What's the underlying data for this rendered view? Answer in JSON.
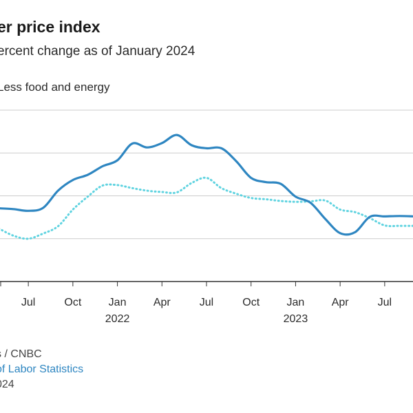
{
  "chart_data": {
    "type": "line",
    "title": "er price index",
    "subtitle": "ercent change as of January 2024",
    "series": [
      {
        "name": "Less food and energy",
        "color": "#2e86c1",
        "style": "solid",
        "x": [
          "2021-05",
          "2021-06",
          "2021-07",
          "2021-08",
          "2021-09",
          "2021-10",
          "2021-11",
          "2021-12",
          "2022-01",
          "2022-02",
          "2022-03",
          "2022-04",
          "2022-05",
          "2022-06",
          "2022-07",
          "2022-08",
          "2022-09",
          "2022-10",
          "2022-11",
          "2022-12",
          "2023-01",
          "2023-02",
          "2023-03",
          "2023-04",
          "2023-05",
          "2023-06",
          "2023-07",
          "2023-08",
          "2023-09"
        ],
        "values": [
          4.71,
          4.69,
          4.65,
          4.72,
          5.12,
          5.37,
          5.49,
          5.69,
          5.83,
          6.22,
          6.13,
          6.23,
          6.42,
          6.18,
          6.11,
          6.11,
          5.81,
          5.42,
          5.32,
          5.28,
          4.98,
          4.84,
          4.46,
          4.13,
          4.15,
          4.51,
          4.52,
          4.53,
          4.52
        ]
      },
      {
        "name": "",
        "color": "#5fd3e0",
        "style": "dotted",
        "x": [
          "2021-05",
          "2021-06",
          "2021-07",
          "2021-08",
          "2021-09",
          "2021-10",
          "2021-11",
          "2021-12",
          "2022-01",
          "2022-02",
          "2022-03",
          "2022-04",
          "2022-05",
          "2022-06",
          "2022-07",
          "2022-08",
          "2022-09",
          "2022-10",
          "2022-11",
          "2022-12",
          "2023-01",
          "2023-02",
          "2023-03",
          "2023-04",
          "2023-05",
          "2023-06",
          "2023-07",
          "2023-08",
          "2023-09"
        ],
        "values": [
          4.24,
          4.07,
          4.0,
          4.12,
          4.29,
          4.68,
          4.98,
          5.24,
          5.25,
          5.18,
          5.12,
          5.09,
          5.08,
          5.3,
          5.42,
          5.18,
          5.05,
          4.95,
          4.92,
          4.88,
          4.86,
          4.87,
          4.89,
          4.68,
          4.62,
          4.48,
          4.31,
          4.3,
          4.3
        ]
      }
    ],
    "ylim": [
      3.0,
      7.0
    ],
    "xlim": [
      "2021-05",
      "2023-09"
    ],
    "grid": true,
    "gridlines": [
      4.0,
      5.0,
      6.0,
      7.0
    ],
    "x_ticks": [
      {
        "at": "2021-07",
        "label": "Jul"
      },
      {
        "at": "2021-10",
        "label": "Oct"
      },
      {
        "at": "2022-01",
        "label": "Jan"
      },
      {
        "at": "2022-04",
        "label": "Apr"
      },
      {
        "at": "2022-07",
        "label": "Jul"
      },
      {
        "at": "2022-10",
        "label": "Oct"
      },
      {
        "at": "2023-01",
        "label": "Jan"
      },
      {
        "at": "2023-04",
        "label": "Apr"
      },
      {
        "at": "2023-07",
        "label": "Jul"
      }
    ],
    "year_labels": [
      {
        "at": "2022-01",
        "label": "2022"
      },
      {
        "at": "2023-01",
        "label": "2023"
      }
    ],
    "axis_color": "#333333",
    "grid_color": "#cccccc"
  },
  "footer": {
    "source": "s / CNBC",
    "link": "of Labor Statistics",
    "date": "024"
  }
}
